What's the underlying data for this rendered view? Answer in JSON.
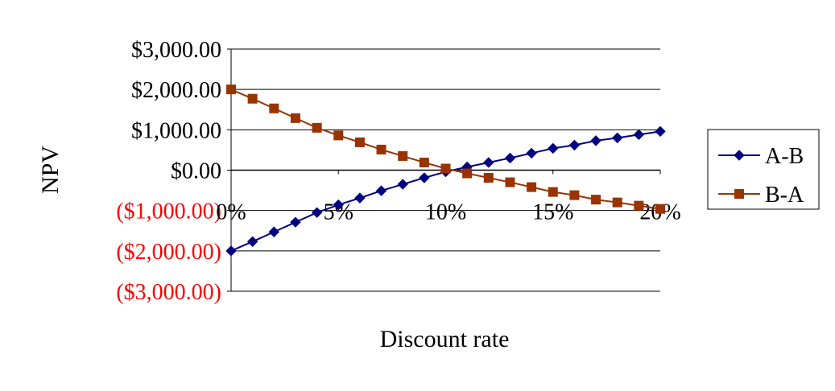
{
  "chart_data": {
    "type": "line",
    "xlabel": "Discount rate",
    "ylabel": "NPV",
    "x": [
      0,
      1,
      2,
      3,
      4,
      5,
      6,
      7,
      8,
      9,
      10,
      11,
      12,
      13,
      14,
      15,
      16,
      17,
      18,
      19,
      20
    ],
    "xticks": [
      {
        "value": 0,
        "label": "0%"
      },
      {
        "value": 5,
        "label": "5%"
      },
      {
        "value": 10,
        "label": "10%"
      },
      {
        "value": 15,
        "label": "15%"
      },
      {
        "value": 20,
        "label": "20%"
      }
    ],
    "yticks": [
      {
        "value": 3000,
        "label": "$3,000.00",
        "negative": false
      },
      {
        "value": 2000,
        "label": "$2,000.00",
        "negative": false
      },
      {
        "value": 1000,
        "label": "$1,000.00",
        "negative": false
      },
      {
        "value": 0,
        "label": "$0.00",
        "negative": false
      },
      {
        "value": -1000,
        "label": "($1,000.00)",
        "negative": true
      },
      {
        "value": -2000,
        "label": "($2,000.00)",
        "negative": true
      },
      {
        "value": -3000,
        "label": "($3,000.00)",
        "negative": true
      }
    ],
    "xlim": [
      0,
      20
    ],
    "ylim": [
      -3000,
      3000
    ],
    "grid": "horizontal",
    "legend_position": "right",
    "series": [
      {
        "name": "A-B",
        "color": "#000080",
        "marker": "diamond",
        "values": [
          -2000,
          -1770,
          -1530,
          -1290,
          -1050,
          -860,
          -690,
          -510,
          -350,
          -190,
          -40,
          80,
          190,
          300,
          420,
          540,
          620,
          730,
          800,
          880,
          960
        ]
      },
      {
        "name": "B-A",
        "color": "#993300",
        "marker": "square",
        "values": [
          2000,
          1770,
          1530,
          1290,
          1050,
          860,
          690,
          510,
          350,
          190,
          40,
          -80,
          -190,
          -300,
          -420,
          -540,
          -620,
          -730,
          -800,
          -880,
          -960
        ]
      }
    ],
    "colors": {
      "axis": "#000000",
      "grid": "#000000",
      "positive_tick": "#000000",
      "negative_tick": "#ff0000"
    }
  }
}
